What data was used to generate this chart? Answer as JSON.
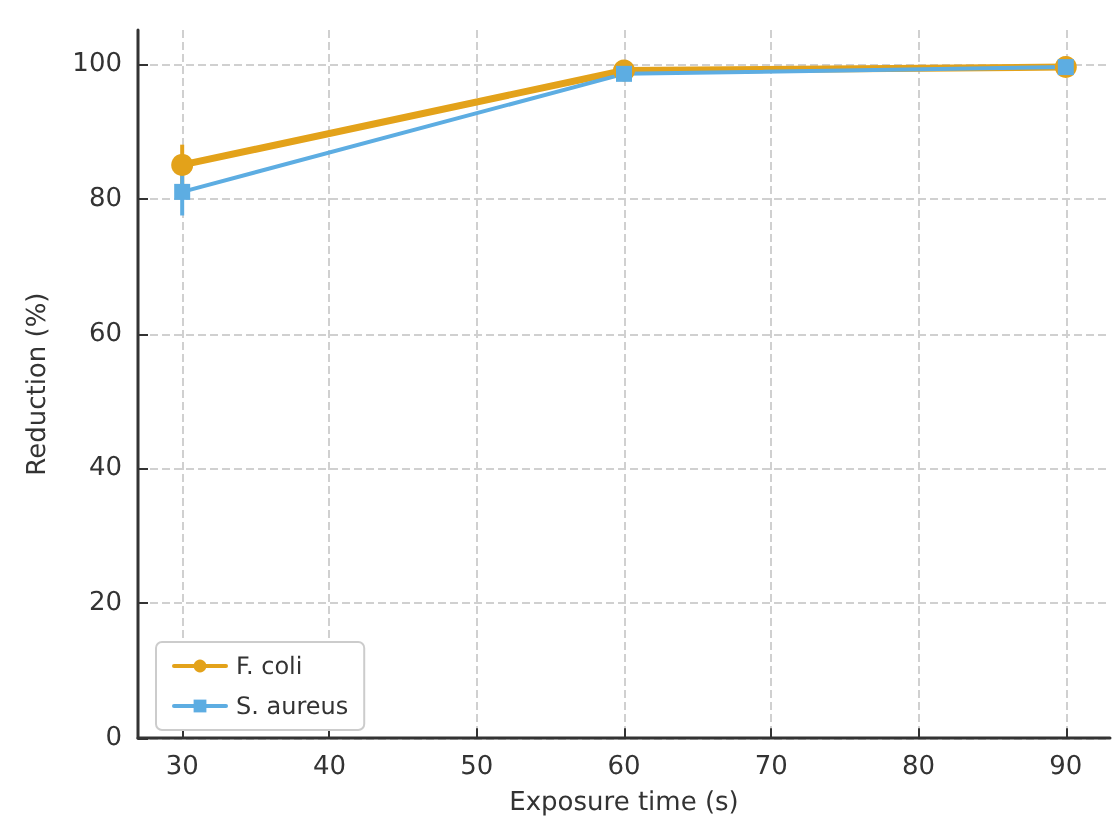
{
  "chart_data": {
    "type": "line",
    "xlabel": "Exposure time (s)",
    "ylabel": "Reduction (%)",
    "x": [
      30,
      60,
      90
    ],
    "series": [
      {
        "name": "F. coli",
        "color": "#e3a21a",
        "marker": "circle",
        "values": [
          85,
          99,
          99.5
        ],
        "errors": [
          3,
          null,
          null
        ]
      },
      {
        "name": "S. aureus",
        "color": "#5dade2",
        "marker": "square",
        "values": [
          81,
          98.5,
          99.5
        ],
        "errors": [
          3.5,
          null,
          null
        ]
      }
    ],
    "xlim": [
      27,
      93
    ],
    "xticks": [
      30,
      40,
      50,
      60,
      70,
      80,
      90
    ],
    "ylim": [
      0,
      105
    ],
    "yticks": [
      0,
      20,
      40,
      60,
      80,
      100
    ],
    "grid": true,
    "legend": "bottom left",
    "line_style": "solid"
  }
}
